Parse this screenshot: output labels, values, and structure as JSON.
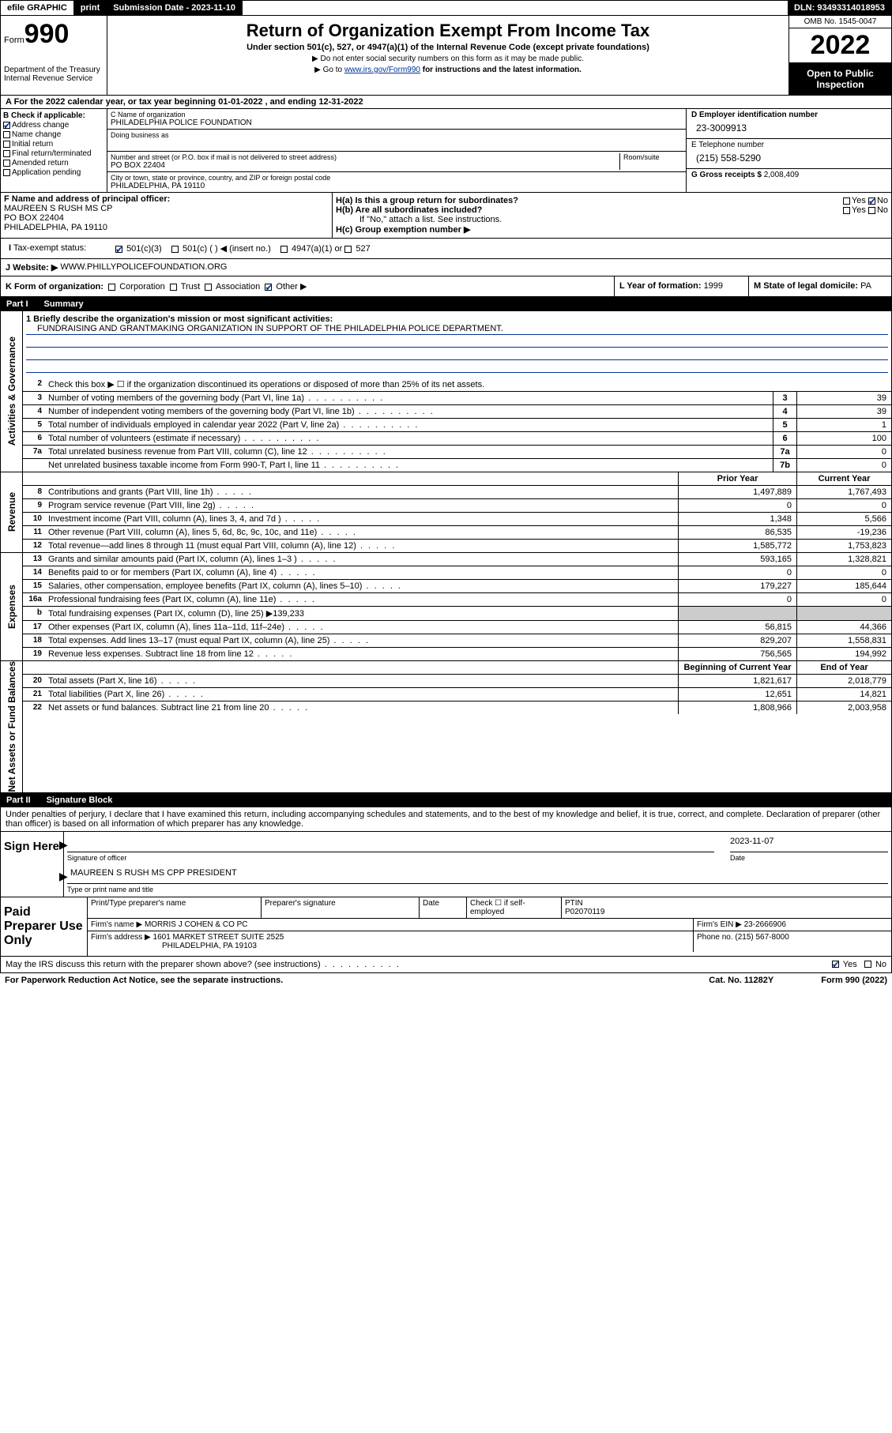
{
  "topbar": {
    "efile": "efile GRAPHIC",
    "print": "print",
    "sub_label": "Submission Date - ",
    "sub_date": "2023-11-10",
    "dln_label": "DLN: ",
    "dln": "93493314018953"
  },
  "header": {
    "form_word": "Form",
    "form_num": "990",
    "dept": "Department of the Treasury",
    "irs": "Internal Revenue Service",
    "title": "Return of Organization Exempt From Income Tax",
    "sub1": "Under section 501(c), 527, or 4947(a)(1) of the Internal Revenue Code (except private foundations)",
    "sub2": "▶ Do not enter social security numbers on this form as it may be made public.",
    "sub3a": "▶ Go to ",
    "sub3_link": "www.irs.gov/Form990",
    "sub3b": " for instructions and the latest information.",
    "omb": "OMB No. 1545-0047",
    "year": "2022",
    "open": "Open to Public Inspection"
  },
  "sectionA": {
    "text": "A For the 2022 calendar year, or tax year beginning 01-01-2022   , and ending 12-31-2022"
  },
  "boxB": {
    "label": "B Check if applicable:",
    "addr": "Address change",
    "name": "Name change",
    "init": "Initial return",
    "final": "Final return/terminated",
    "amend": "Amended return",
    "app": "Application pending"
  },
  "boxC": {
    "label": "C Name of organization",
    "org": "PHILADELPHIA POLICE FOUNDATION",
    "dba_label": "Doing business as",
    "street_label": "Number and street (or P.O. box if mail is not delivered to street address)",
    "room_label": "Room/suite",
    "street": "PO BOX 22404",
    "city_label": "City or town, state or province, country, and ZIP or foreign postal code",
    "city": "PHILADELPHIA, PA  19110"
  },
  "boxD": {
    "label": "D Employer identification number",
    "val": "23-3009913"
  },
  "boxE": {
    "label": "E Telephone number",
    "val": "(215) 558-5290"
  },
  "boxG": {
    "label": "G Gross receipts $ ",
    "val": "2,008,409"
  },
  "boxF": {
    "label": "F Name and address of principal officer:",
    "name": "MAUREEN S RUSH MS CP",
    "addr1": "PO BOX 22404",
    "addr2": "PHILADELPHIA, PA  19110"
  },
  "boxH": {
    "a": "H(a)  Is this a group return for subordinates?",
    "b": "H(b)  Are all subordinates included?",
    "b2": "If \"No,\" attach a list. See instructions.",
    "c": "H(c)  Group exemption number ▶",
    "yes": "Yes",
    "no": "No"
  },
  "boxI": {
    "label": "Tax-exempt status:",
    "o1": "501(c)(3)",
    "o2": "501(c) (   ) ◀ (insert no.)",
    "o3": "4947(a)(1) or",
    "o4": "527"
  },
  "boxJ": {
    "label": "J  Website: ▶ ",
    "val": "WWW.PHILLYPOLICEFOUNDATION.ORG"
  },
  "boxK": {
    "label": "K Form of organization:",
    "corp": "Corporation",
    "trust": "Trust",
    "assoc": "Association",
    "other": "Other ▶"
  },
  "boxL": {
    "label": "L Year of formation: ",
    "val": "1999"
  },
  "boxM": {
    "label": "M State of legal domicile: ",
    "val": "PA"
  },
  "part1": {
    "num": "Part I",
    "title": "Summary"
  },
  "summary": {
    "l1_label": "1  Briefly describe the organization's mission or most significant activities:",
    "l1_text": "FUNDRAISING AND GRANTMAKING ORGANIZATION IN SUPPORT OF THE PHILADELPHIA POLICE DEPARTMENT.",
    "l2": "Check this box ▶ ☐  if the organization discontinued its operations or disposed of more than 25% of its net assets.",
    "rows_gov": [
      {
        "n": "3",
        "t": "Number of voting members of the governing body (Part VI, line 1a)",
        "b": "3",
        "v": "39"
      },
      {
        "n": "4",
        "t": "Number of independent voting members of the governing body (Part VI, line 1b)",
        "b": "4",
        "v": "39"
      },
      {
        "n": "5",
        "t": "Total number of individuals employed in calendar year 2022 (Part V, line 2a)",
        "b": "5",
        "v": "1"
      },
      {
        "n": "6",
        "t": "Total number of volunteers (estimate if necessary)",
        "b": "6",
        "v": "100"
      },
      {
        "n": "7a",
        "t": "Total unrelated business revenue from Part VIII, column (C), line 12",
        "b": "7a",
        "v": "0"
      },
      {
        "n": "",
        "t": "Net unrelated business taxable income from Form 990-T, Part I, line 11",
        "b": "7b",
        "v": "0"
      }
    ],
    "hdr_prior": "Prior Year",
    "hdr_curr": "Current Year",
    "rows_rev": [
      {
        "n": "8",
        "t": "Contributions and grants (Part VIII, line 1h)",
        "p": "1,497,889",
        "c": "1,767,493"
      },
      {
        "n": "9",
        "t": "Program service revenue (Part VIII, line 2g)",
        "p": "0",
        "c": "0"
      },
      {
        "n": "10",
        "t": "Investment income (Part VIII, column (A), lines 3, 4, and 7d )",
        "p": "1,348",
        "c": "5,566"
      },
      {
        "n": "11",
        "t": "Other revenue (Part VIII, column (A), lines 5, 6d, 8c, 9c, 10c, and 11e)",
        "p": "86,535",
        "c": "-19,236"
      },
      {
        "n": "12",
        "t": "Total revenue—add lines 8 through 11 (must equal Part VIII, column (A), line 12)",
        "p": "1,585,772",
        "c": "1,753,823"
      }
    ],
    "rows_exp": [
      {
        "n": "13",
        "t": "Grants and similar amounts paid (Part IX, column (A), lines 1–3 )",
        "p": "593,165",
        "c": "1,328,821"
      },
      {
        "n": "14",
        "t": "Benefits paid to or for members (Part IX, column (A), line 4)",
        "p": "0",
        "c": "0"
      },
      {
        "n": "15",
        "t": "Salaries, other compensation, employee benefits (Part IX, column (A), lines 5–10)",
        "p": "179,227",
        "c": "185,644"
      },
      {
        "n": "16a",
        "t": "Professional fundraising fees (Part IX, column (A), line 11e)",
        "p": "0",
        "c": "0"
      },
      {
        "n": "b",
        "t": "Total fundraising expenses (Part IX, column (D), line 25) ▶139,233",
        "p": "",
        "c": "",
        "gray": true
      },
      {
        "n": "17",
        "t": "Other expenses (Part IX, column (A), lines 11a–11d, 11f–24e)",
        "p": "56,815",
        "c": "44,366"
      },
      {
        "n": "18",
        "t": "Total expenses. Add lines 13–17 (must equal Part IX, column (A), line 25)",
        "p": "829,207",
        "c": "1,558,831"
      },
      {
        "n": "19",
        "t": "Revenue less expenses. Subtract line 18 from line 12",
        "p": "756,565",
        "c": "194,992"
      }
    ],
    "hdr_begin": "Beginning of Current Year",
    "hdr_end": "End of Year",
    "rows_net": [
      {
        "n": "20",
        "t": "Total assets (Part X, line 16)",
        "p": "1,821,617",
        "c": "2,018,779"
      },
      {
        "n": "21",
        "t": "Total liabilities (Part X, line 26)",
        "p": "12,651",
        "c": "14,821"
      },
      {
        "n": "22",
        "t": "Net assets or fund balances. Subtract line 21 from line 20",
        "p": "1,808,966",
        "c": "2,003,958"
      }
    ]
  },
  "sidebars": {
    "gov": "Activities & Governance",
    "rev": "Revenue",
    "exp": "Expenses",
    "net": "Net Assets or Fund Balances"
  },
  "part2": {
    "num": "Part II",
    "title": "Signature Block"
  },
  "sig": {
    "penalty": "Under penalties of perjury, I declare that I have examined this return, including accompanying schedules and statements, and to the best of my knowledge and belief, it is true, correct, and complete. Declaration of preparer (other than officer) is based on all information of which preparer has any knowledge.",
    "sign_here": "Sign Here",
    "sig_officer": "Signature of officer",
    "date": "Date",
    "date_val": "2023-11-07",
    "name": "MAUREEN S RUSH MS CPP  PRESIDENT",
    "name_label": "Type or print name and title",
    "paid": "Paid Preparer Use Only",
    "prep_name": "Print/Type preparer's name",
    "prep_sig": "Preparer's signature",
    "check_self": "Check ☐ if self-employed",
    "ptin_label": "PTIN",
    "ptin": "P02070119",
    "firm_name_l": "Firm's name    ▶",
    "firm_name": "MORRIS J COHEN & CO PC",
    "firm_ein_l": "Firm's EIN ▶",
    "firm_ein": "23-2666906",
    "firm_addr_l": "Firm's address ▶",
    "firm_addr1": "1601 MARKET STREET SUITE 2525",
    "firm_addr2": "PHILADELPHIA, PA  19103",
    "phone_l": "Phone no. ",
    "phone": "(215) 567-8000",
    "discuss": "May the IRS discuss this return with the preparer shown above? (see instructions)",
    "yes": "Yes",
    "no": "No"
  },
  "footer": {
    "pra": "For Paperwork Reduction Act Notice, see the separate instructions.",
    "cat": "Cat. No. 11282Y",
    "form": "Form 990 (2022)"
  }
}
